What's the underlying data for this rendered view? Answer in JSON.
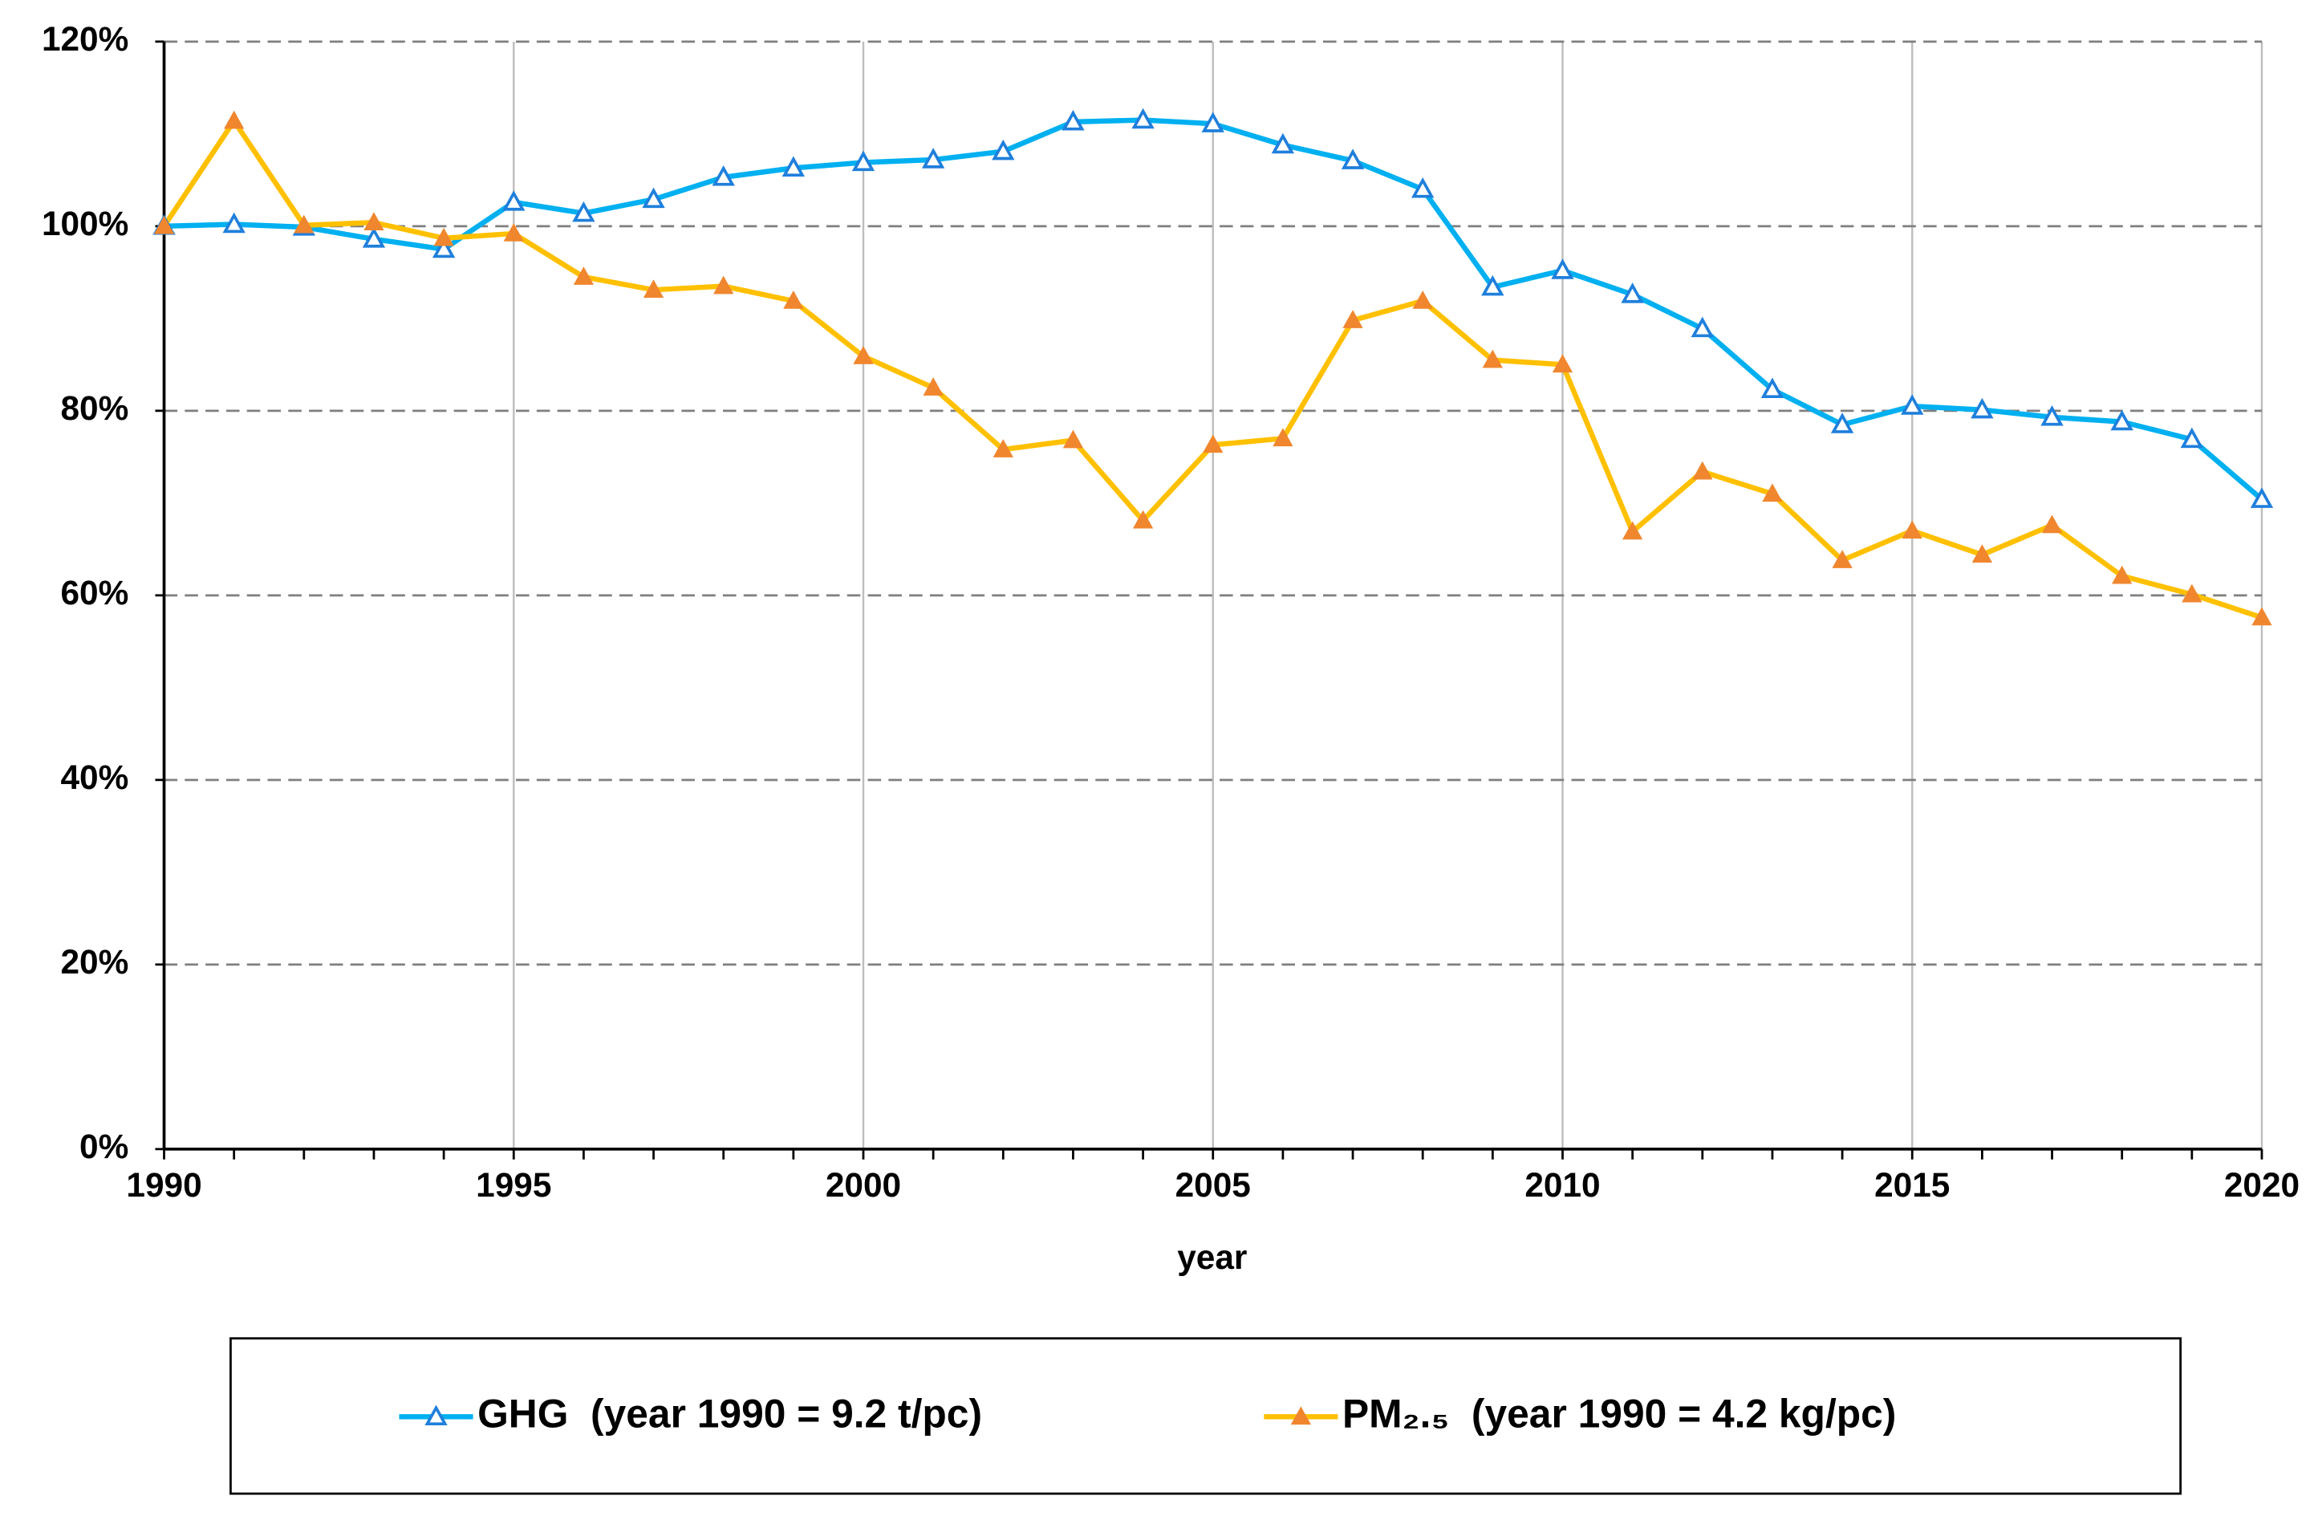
{
  "chart_data": {
    "type": "line",
    "x_label": "year",
    "x": [
      1990,
      1991,
      1992,
      1993,
      1994,
      1995,
      1996,
      1997,
      1998,
      1999,
      2000,
      2001,
      2002,
      2003,
      2004,
      2005,
      2006,
      2007,
      2008,
      2009,
      2010,
      2011,
      2012,
      2013,
      2014,
      2015,
      2016,
      2017,
      2018,
      2019,
      2020
    ],
    "series": [
      {
        "name": "GHG  (year 1990 = 9.2 t/pc)",
        "color": "#00b0f0",
        "marker": "open-triangle",
        "marker_color": "#1f7fdc",
        "values": [
          100,
          100.2,
          99.9,
          98.6,
          97.5,
          102.6,
          101.4,
          102.9,
          105.3,
          106.3,
          106.9,
          107.2,
          108.1,
          111.3,
          111.5,
          111.1,
          108.8,
          107.1,
          104.0,
          93.4,
          95.2,
          92.6,
          88.9,
          82.3,
          78.5,
          80.5,
          80.1,
          79.3,
          78.8,
          76.9,
          70.4
        ]
      },
      {
        "name": "PM₂.₅  (year 1990 = 4.2 kg/pc)",
        "color": "#ffc000",
        "marker": "filled-triangle",
        "marker_color": "#f0862e",
        "values": [
          100,
          111.4,
          100.1,
          100.4,
          98.7,
          99.2,
          94.5,
          93.1,
          93.5,
          91.9,
          85.9,
          82.5,
          75.8,
          76.8,
          68.1,
          76.3,
          77.0,
          89.8,
          91.9,
          85.5,
          85.0,
          66.9,
          73.4,
          71.0,
          63.8,
          67.0,
          64.4,
          67.6,
          62.1,
          60.1,
          57.6
        ]
      }
    ],
    "xlim": [
      1990,
      2020
    ],
    "xticks": [
      1990,
      1995,
      2000,
      2005,
      2010,
      2015,
      2020
    ],
    "ylim": [
      0,
      120
    ],
    "yticks": [
      {
        "value": 0,
        "label": "0%"
      },
      {
        "value": 20,
        "label": "20%"
      },
      {
        "value": 40,
        "label": "40%"
      },
      {
        "value": 60,
        "label": "60%"
      },
      {
        "value": 80,
        "label": "80%"
      },
      {
        "value": 100,
        "label": "100%"
      },
      {
        "value": 120,
        "label": "120%"
      }
    ],
    "grid": true,
    "legend": "bottom"
  }
}
